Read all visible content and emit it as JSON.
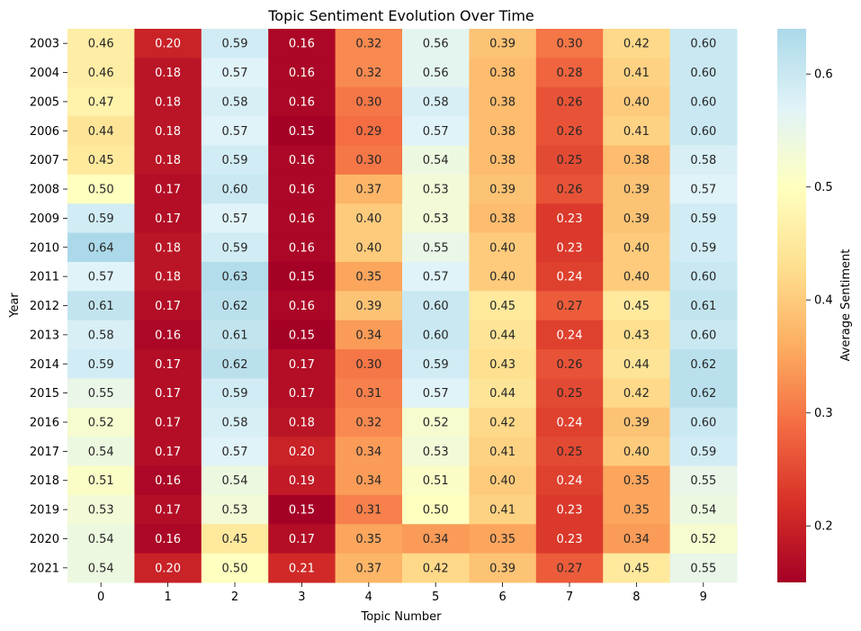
{
  "chart_data": {
    "type": "heatmap",
    "title": "Topic Sentiment Evolution Over Time",
    "xlabel": "Topic Number",
    "ylabel": "Year",
    "x": [
      "0",
      "1",
      "2",
      "3",
      "4",
      "5",
      "6",
      "7",
      "8",
      "9"
    ],
    "y": [
      "2003",
      "2004",
      "2005",
      "2006",
      "2007",
      "2008",
      "2009",
      "2010",
      "2011",
      "2012",
      "2013",
      "2014",
      "2015",
      "2016",
      "2017",
      "2018",
      "2019",
      "2020",
      "2021"
    ],
    "values": [
      [
        0.46,
        0.2,
        0.59,
        0.16,
        0.32,
        0.56,
        0.39,
        0.3,
        0.42,
        0.6
      ],
      [
        0.46,
        0.18,
        0.57,
        0.16,
        0.32,
        0.56,
        0.38,
        0.28,
        0.41,
        0.6
      ],
      [
        0.47,
        0.18,
        0.58,
        0.16,
        0.3,
        0.58,
        0.38,
        0.26,
        0.4,
        0.6
      ],
      [
        0.44,
        0.18,
        0.57,
        0.15,
        0.29,
        0.57,
        0.38,
        0.26,
        0.41,
        0.6
      ],
      [
        0.45,
        0.18,
        0.59,
        0.16,
        0.3,
        0.54,
        0.38,
        0.25,
        0.38,
        0.58
      ],
      [
        0.5,
        0.17,
        0.6,
        0.16,
        0.37,
        0.53,
        0.39,
        0.26,
        0.39,
        0.57
      ],
      [
        0.59,
        0.17,
        0.57,
        0.16,
        0.4,
        0.53,
        0.38,
        0.23,
        0.39,
        0.59
      ],
      [
        0.64,
        0.18,
        0.59,
        0.16,
        0.4,
        0.55,
        0.4,
        0.23,
        0.4,
        0.59
      ],
      [
        0.57,
        0.18,
        0.63,
        0.15,
        0.35,
        0.57,
        0.4,
        0.24,
        0.4,
        0.6
      ],
      [
        0.61,
        0.17,
        0.62,
        0.16,
        0.39,
        0.6,
        0.45,
        0.27,
        0.45,
        0.61
      ],
      [
        0.58,
        0.16,
        0.61,
        0.15,
        0.34,
        0.6,
        0.44,
        0.24,
        0.43,
        0.6
      ],
      [
        0.59,
        0.17,
        0.62,
        0.17,
        0.3,
        0.59,
        0.43,
        0.26,
        0.44,
        0.62
      ],
      [
        0.55,
        0.17,
        0.59,
        0.17,
        0.31,
        0.57,
        0.44,
        0.25,
        0.42,
        0.62
      ],
      [
        0.52,
        0.17,
        0.58,
        0.18,
        0.32,
        0.52,
        0.42,
        0.24,
        0.39,
        0.6
      ],
      [
        0.54,
        0.17,
        0.57,
        0.2,
        0.34,
        0.53,
        0.41,
        0.25,
        0.4,
        0.59
      ],
      [
        0.51,
        0.16,
        0.54,
        0.19,
        0.34,
        0.51,
        0.4,
        0.24,
        0.35,
        0.55
      ],
      [
        0.53,
        0.17,
        0.53,
        0.15,
        0.31,
        0.5,
        0.41,
        0.23,
        0.35,
        0.54
      ],
      [
        0.54,
        0.16,
        0.45,
        0.17,
        0.35,
        0.34,
        0.35,
        0.23,
        0.34,
        0.52
      ],
      [
        0.54,
        0.2,
        0.5,
        0.21,
        0.37,
        0.42,
        0.39,
        0.27,
        0.45,
        0.55
      ]
    ],
    "colorbar": {
      "label": "Average Sentiment",
      "range": [
        0.15,
        0.64
      ],
      "ticks": [
        0.2,
        0.3,
        0.4,
        0.5,
        0.6
      ],
      "colormap": "RdYlBu",
      "colors": [
        "#a50026",
        "#d73027",
        "#f46d43",
        "#fdae61",
        "#fee090",
        "#ffffbf",
        "#e0f3f8",
        "#abd9e9"
      ]
    },
    "cell_label_format": "2 decimals"
  }
}
